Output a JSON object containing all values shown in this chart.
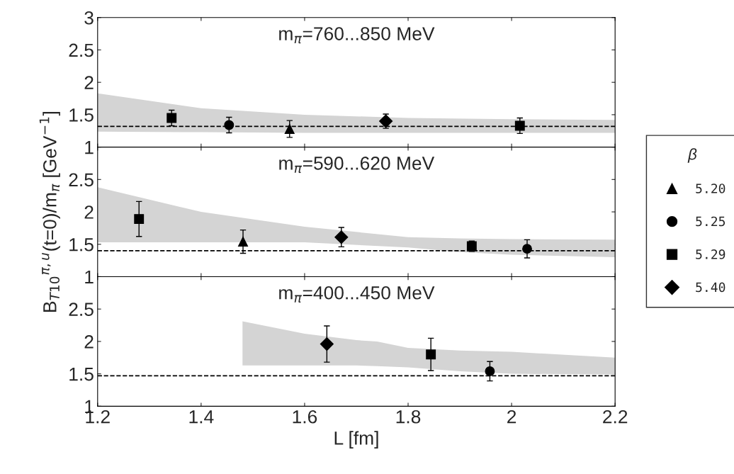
{
  "chart_data": [
    {
      "type": "scatter",
      "title": "m$_{π}$=760...850 MeV",
      "legend": "right",
      "legend_title": "β",
      "xlim": [
        1.2,
        2.2
      ],
      "xticks": [
        1.2,
        1.4,
        1.6,
        1.8,
        2,
        2.2
      ],
      "ylim": [
        1,
        3
      ],
      "yticks": [
        1,
        1.5,
        2,
        2.5,
        3
      ],
      "tick_labels": "y",
      "ref_lines": [
        {
          "axis": "y",
          "value": 1.32,
          "line_style": "dashed",
          "color": "#000000"
        }
      ],
      "series": [
        {
          "type": "area",
          "color": "#d4d4d4",
          "x": [
            1.2,
            1.4,
            1.6,
            1.8,
            2.0,
            2.2
          ],
          "values": [
            null,
            null,
            null,
            null,
            null,
            null
          ],
          "lower": [
            1.24,
            1.23,
            1.22,
            1.22,
            1.22,
            1.22
          ],
          "upper": [
            1.83,
            1.6,
            1.5,
            1.45,
            1.43,
            1.42
          ]
        },
        {
          "name": "5.20",
          "color": "#000000",
          "marker": "triangle",
          "x": [
            1.571
          ],
          "values": [
            1.28
          ],
          "errors": [
            0.13
          ]
        },
        {
          "name": "5.25",
          "color": "#000000",
          "marker": "circle",
          "x": [
            1.454
          ],
          "values": [
            1.34
          ],
          "errors": [
            0.12
          ]
        },
        {
          "name": "5.29",
          "color": "#000000",
          "marker": "square",
          "x": [
            1.343,
            2.016
          ],
          "values": [
            1.45,
            1.33
          ],
          "errors": [
            0.12,
            0.12
          ]
        },
        {
          "name": "5.40",
          "color": "#000000",
          "marker": "diamond",
          "x": [
            1.757
          ],
          "values": [
            1.4
          ],
          "errors": [
            0.11
          ]
        }
      ]
    },
    {
      "type": "scatter",
      "title": "m$_{π}$=590...620 MeV",
      "ylabel": "B$_{T10}$$^{π,u}$(t=0)/m$_{π}$ [GeV$^{−1}$]",
      "xlim": [
        1.2,
        2.2
      ],
      "xticks": [
        1.2,
        1.4,
        1.6,
        1.8,
        2,
        2.2
      ],
      "ylim": [
        1,
        3
      ],
      "yticks": [
        1,
        1.5,
        2,
        2.5,
        {
          "value": 3,
          "label": null
        }
      ],
      "tick_labels": "y",
      "ref_lines": [
        {
          "axis": "y",
          "value": 1.4,
          "line_style": "dashed",
          "color": "#000000"
        }
      ],
      "series": [
        {
          "type": "area",
          "color": "#d4d4d4",
          "x": [
            1.2,
            1.4,
            1.6,
            1.8,
            1.9,
            2.0,
            2.2
          ],
          "values": [
            null,
            null,
            null,
            null,
            null,
            null,
            null
          ],
          "lower": [
            1.53,
            1.53,
            1.53,
            1.45,
            1.38,
            1.34,
            1.3
          ],
          "upper": [
            2.38,
            2.0,
            1.77,
            1.61,
            1.59,
            1.58,
            1.57
          ]
        },
        {
          "name": "5.20",
          "color": "#000000",
          "marker": "triangle",
          "x": [
            1.481
          ],
          "values": [
            1.54
          ],
          "errors": [
            0.18
          ]
        },
        {
          "name": "5.25",
          "color": "#000000",
          "marker": "circle",
          "x": [
            2.03
          ],
          "values": [
            1.43
          ],
          "errors": [
            0.14
          ]
        },
        {
          "name": "5.29",
          "color": "#000000",
          "marker": "square",
          "x": [
            1.28,
            1.923
          ],
          "values": [
            1.89,
            1.47
          ],
          "errors": [
            0.27,
            0.08
          ]
        },
        {
          "name": "5.40",
          "color": "#000000",
          "marker": "diamond",
          "x": [
            1.671
          ],
          "values": [
            1.61
          ],
          "errors": [
            0.15
          ]
        }
      ]
    },
    {
      "type": "scatter",
      "title": "m$_{π}$=400...450 MeV",
      "xlabel": "L [fm]",
      "xlim": [
        1.2,
        2.2
      ],
      "xticks": [
        1.2,
        1.4,
        1.6,
        1.8,
        2,
        2.2
      ],
      "ylim": [
        1,
        3
      ],
      "yticks": [
        1,
        1.5,
        2,
        2.5,
        {
          "value": 3,
          "label": null
        }
      ],
      "ref_lines": [
        {
          "axis": "y",
          "value": 1.47,
          "line_style": "dashed",
          "color": "#000000"
        }
      ],
      "series": [
        {
          "type": "area",
          "color": "#d4d4d4",
          "x": [
            1.48,
            1.6,
            1.7,
            1.74,
            1.8,
            1.9,
            2.0,
            2.2
          ],
          "values": [
            null,
            null,
            null,
            null,
            null,
            null,
            null,
            null
          ],
          "lower": [
            1.63,
            1.63,
            1.63,
            1.62,
            1.6,
            1.54,
            1.5,
            1.49
          ],
          "upper": [
            2.31,
            2.12,
            2.02,
            2.0,
            1.9,
            1.86,
            1.84,
            1.75
          ]
        },
        {
          "name": "5.25",
          "color": "#000000",
          "marker": "circle",
          "x": [
            1.958
          ],
          "values": [
            1.54
          ],
          "errors": [
            0.15
          ]
        },
        {
          "name": "5.29",
          "color": "#000000",
          "marker": "square",
          "x": [
            1.844
          ],
          "values": [
            1.8
          ],
          "errors": [
            0.25
          ]
        },
        {
          "name": "5.40",
          "color": "#000000",
          "marker": "diamond",
          "x": [
            1.643
          ],
          "values": [
            1.96
          ],
          "errors": [
            0.28
          ]
        }
      ]
    }
  ]
}
